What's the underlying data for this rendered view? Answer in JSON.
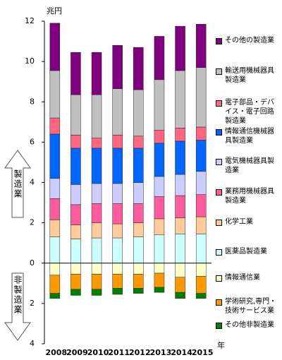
{
  "chart_data": {
    "type": "stacked_bar",
    "y_label": "兆円",
    "x_label": "年",
    "annotations": [
      "製造業",
      "非製造業"
    ],
    "categories": [
      "2008",
      "2009",
      "2010",
      "2011",
      "2012",
      "2013",
      "2014",
      "2015"
    ],
    "ylim": [
      -4,
      12
    ],
    "yticks": [
      {
        "value": -4,
        "label": "4"
      },
      {
        "value": -2,
        "label": "2"
      },
      0,
      2,
      4,
      6,
      8,
      10,
      12
    ],
    "series": [
      {
        "name": "医薬品製造業",
        "color": "#ccffff",
        "values": [
          1.3,
          1.2,
          1.25,
          1.25,
          1.3,
          1.4,
          1.45,
          1.45
        ]
      },
      {
        "name": "化学工業",
        "color": "#ffcc99",
        "values": [
          0.85,
          0.7,
          0.75,
          0.7,
          0.7,
          0.8,
          0.8,
          0.85
        ]
      },
      {
        "name": "業務用機械器具製造業",
        "color": "#ff5c9d",
        "values": [
          1.05,
          1.0,
          0.95,
          1.0,
          0.95,
          1.1,
          1.1,
          1.1
        ]
      },
      {
        "name": "電気機械器具製造業",
        "color": "#ccccff",
        "values": [
          1.0,
          1.0,
          1.0,
          1.0,
          1.05,
          1.0,
          1.05,
          1.15
        ]
      },
      {
        "name": "情報通信機械器具製造業",
        "color": "#0066ff",
        "values": [
          2.2,
          1.8,
          1.75,
          1.75,
          1.7,
          1.65,
          1.65,
          1.55
        ]
      },
      {
        "name": "電子部品・デバイス・電子回路製造業",
        "color": "#ff6680",
        "values": [
          0.8,
          0.65,
          0.5,
          0.65,
          0.6,
          0.65,
          0.65,
          0.65
        ]
      },
      {
        "name": "輸送用機械器具製造業",
        "color": "#c0c0c0",
        "values": [
          2.35,
          2.0,
          2.15,
          2.3,
          2.3,
          2.5,
          2.85,
          2.95
        ]
      },
      {
        "name": "その他の製造業",
        "color": "#800080",
        "values": [
          2.35,
          2.1,
          2.1,
          2.15,
          2.1,
          2.15,
          2.2,
          2.15
        ]
      },
      {
        "name": "情報通信業",
        "color": "#ffffcc",
        "values": [
          -0.6,
          -0.55,
          -0.55,
          -0.55,
          -0.55,
          -0.5,
          -0.7,
          -0.65
        ]
      },
      {
        "name": "学術研究,専門・技術サービス業",
        "color": "#ff9900",
        "values": [
          -0.9,
          -0.75,
          -0.75,
          -0.7,
          -0.7,
          -0.7,
          -0.75,
          -0.85
        ]
      },
      {
        "name": "その他非製造業",
        "color": "#008000",
        "values": [
          -0.25,
          -0.3,
          -0.3,
          -0.3,
          -0.25,
          -0.25,
          -0.3,
          -0.25
        ]
      }
    ]
  }
}
